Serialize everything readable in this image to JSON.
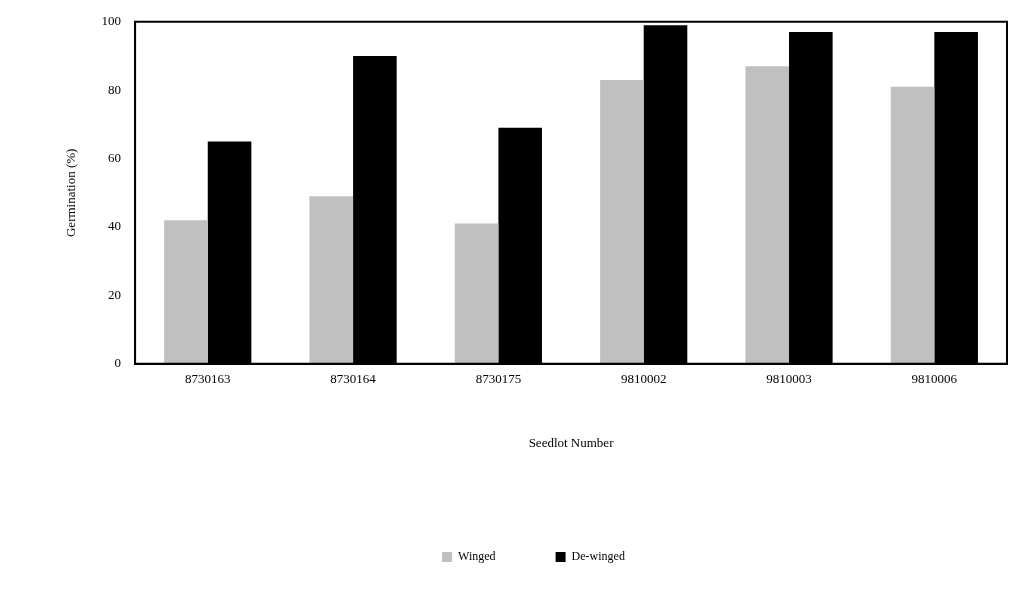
{
  "chart_data": {
    "type": "bar",
    "xlabel": "Seedlot Number",
    "ylabel": "Germination (%)",
    "categories": [
      "8730163",
      "8730164",
      "8730175",
      "9810002",
      "9810003",
      "9810006"
    ],
    "series": [
      {
        "name": "Winged",
        "color": "#c0c0c0",
        "values": [
          42,
          49,
          41,
          83,
          87,
          81
        ]
      },
      {
        "name": "De-winged",
        "color": "#000000",
        "values": [
          65,
          90,
          69,
          99,
          97,
          97
        ]
      }
    ],
    "ylim": [
      0,
      100
    ],
    "yticks": [
      0,
      20,
      40,
      60,
      80,
      100
    ],
    "grid": false,
    "legend": "bottom"
  }
}
